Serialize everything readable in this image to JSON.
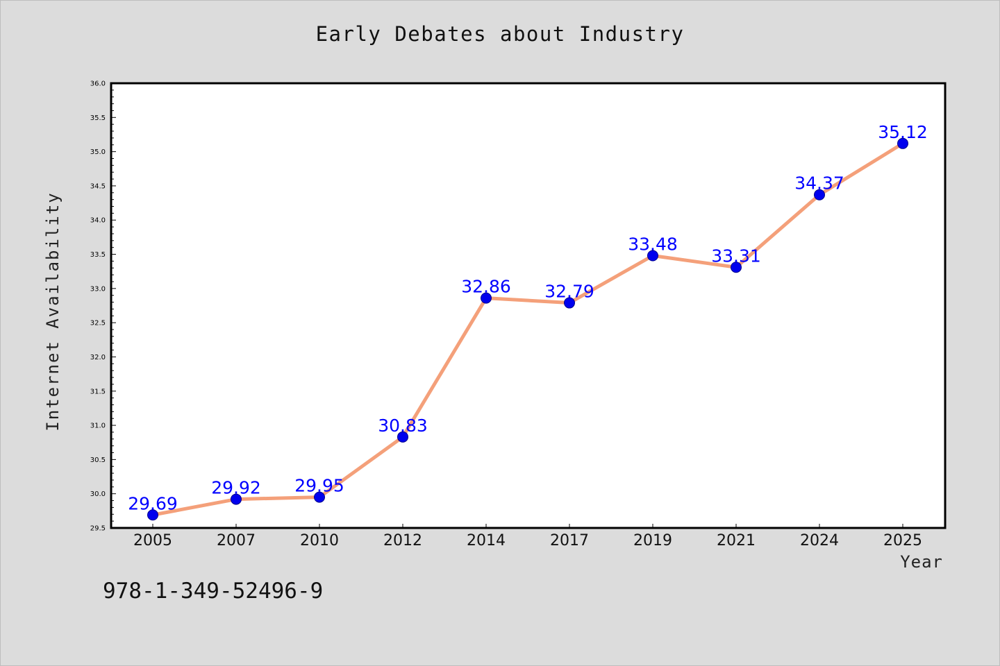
{
  "chart_data": {
    "type": "line",
    "title": "Early Debates about Industry",
    "xlabel": "Year",
    "ylabel": "Internet Availability",
    "categories": [
      "2005",
      "2007",
      "2010",
      "2012",
      "2014",
      "2017",
      "2019",
      "2021",
      "2024",
      "2025"
    ],
    "values": [
      29.69,
      29.92,
      29.95,
      30.83,
      32.86,
      32.79,
      33.48,
      33.31,
      34.37,
      35.12
    ],
    "data_labels": [
      "29.69",
      "29.92",
      "29.95",
      "30.83",
      "32.86",
      "32.79",
      "33.48",
      "33.31",
      "34.37",
      "35.12"
    ],
    "ylim": [
      29.5,
      36.0
    ],
    "yticks": [
      "29.5",
      "30.0",
      "30.5",
      "31.0",
      "31.5",
      "32.0",
      "32.5",
      "33.0",
      "33.5",
      "34.0",
      "34.5",
      "35.0",
      "35.5",
      "36.0"
    ],
    "grid": false,
    "legend": "none",
    "colors": {
      "line": "#f4a07a",
      "marker": "#0000ee",
      "marker_edge": "#00008b",
      "data_label": "#0000ff",
      "background": "#dcdcdc",
      "plot_background": "#ffffff"
    }
  },
  "footnote": "978-1-349-52496-9"
}
